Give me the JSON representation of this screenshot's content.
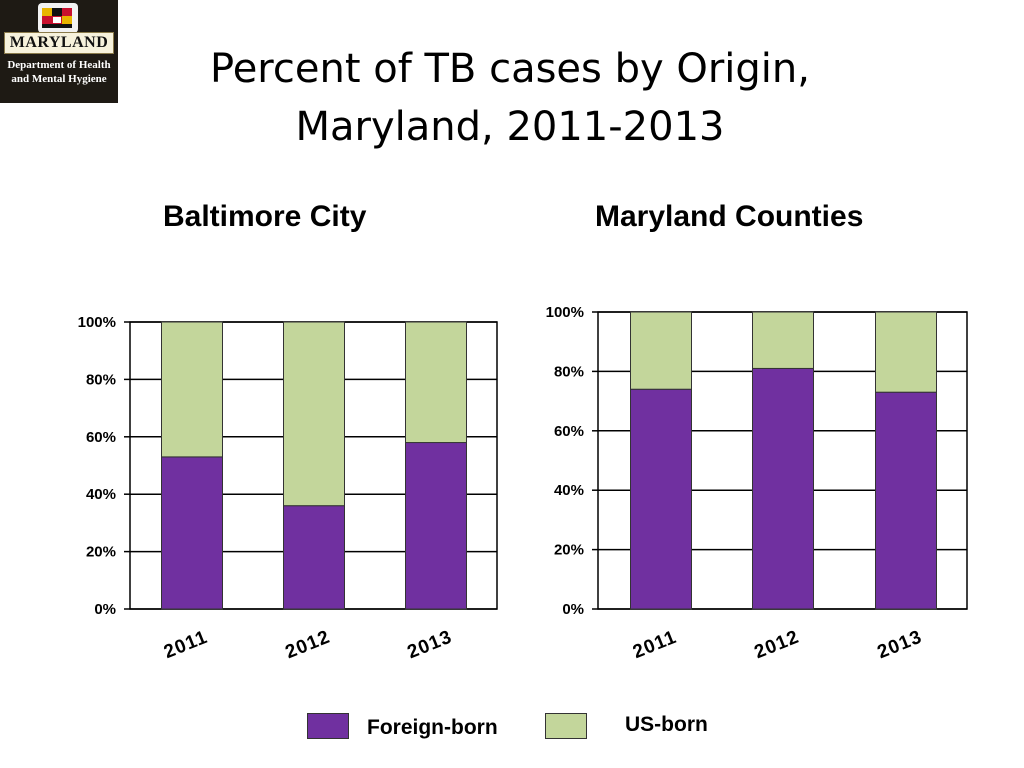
{
  "logo": {
    "banner": "MARYLAND",
    "dept_line1": "Department of Health",
    "dept_line2": "and Mental Hygiene"
  },
  "title": {
    "line1": "Percent of TB cases by Origin,",
    "line2": "Maryland, 2011-2013"
  },
  "colors": {
    "foreign_born": "#7030a0",
    "us_born": "#c3d69b"
  },
  "legend": {
    "foreign_born": "Foreign-born",
    "us_born": "US-born"
  },
  "chart_data": [
    {
      "type": "bar",
      "stacked": true,
      "title": "Baltimore City",
      "categories": [
        "2011",
        "2012",
        "2013"
      ],
      "series": [
        {
          "name": "Foreign-born",
          "values": [
            53,
            36,
            58
          ]
        },
        {
          "name": "US-born",
          "values": [
            47,
            64,
            42
          ]
        }
      ],
      "ylim": [
        0,
        100
      ],
      "yticks": [
        "0%",
        "20%",
        "40%",
        "60%",
        "80%",
        "100%"
      ],
      "grid": true,
      "legend": "bottom"
    },
    {
      "type": "bar",
      "stacked": true,
      "title": "Maryland Counties",
      "categories": [
        "2011",
        "2012",
        "2013"
      ],
      "series": [
        {
          "name": "Foreign-born",
          "values": [
            74,
            81,
            73
          ]
        },
        {
          "name": "US-born",
          "values": [
            26,
            19,
            27
          ]
        }
      ],
      "ylim": [
        0,
        100
      ],
      "yticks": [
        "0%",
        "20%",
        "40%",
        "60%",
        "80%",
        "100%"
      ],
      "grid": true,
      "legend": "bottom"
    }
  ]
}
